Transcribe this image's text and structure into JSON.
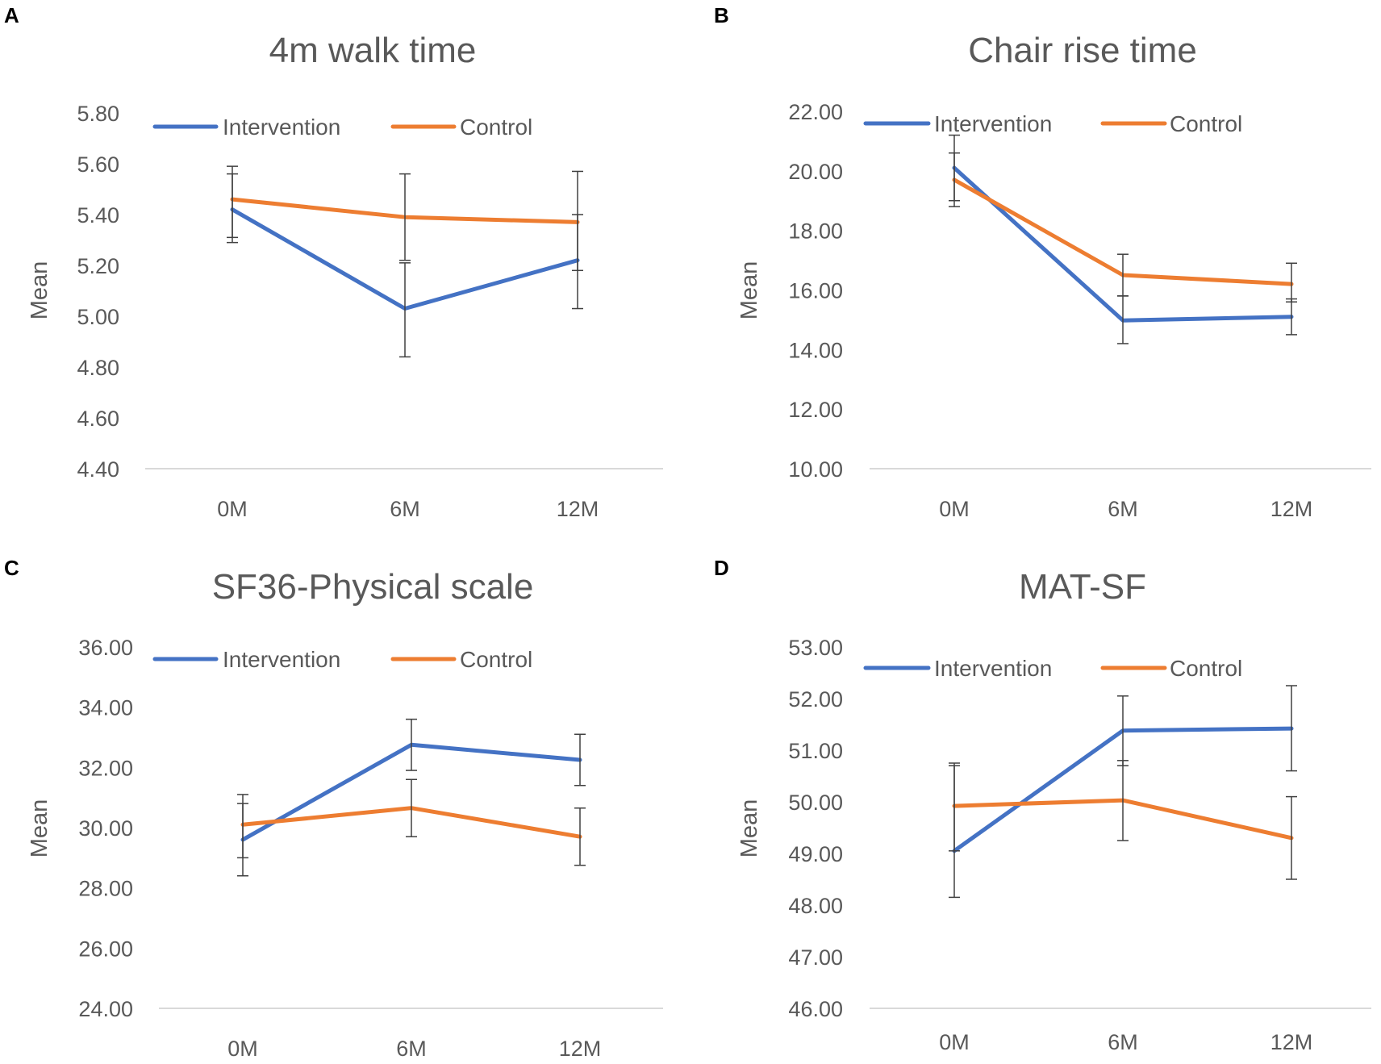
{
  "figure": {
    "panels": [
      "A",
      "B",
      "C",
      "D"
    ]
  },
  "colors": {
    "intervention": "#4472C4",
    "control": "#ED7D31",
    "axis": "#D9D9D9",
    "text": "#595959",
    "errorbar": "#404040"
  },
  "chart_data": [
    {
      "panel": "A",
      "type": "line",
      "title": "4m walk time",
      "xlabel": "",
      "ylabel": "Mean",
      "categories": [
        "0M",
        "6M",
        "12M"
      ],
      "ylim": [
        4.4,
        5.8
      ],
      "yticks": [
        "4.40",
        "4.60",
        "4.80",
        "5.00",
        "5.20",
        "5.40",
        "5.60",
        "5.80"
      ],
      "legend": "top",
      "series": [
        {
          "name": "Intervention",
          "color": "#4472C4",
          "values": [
            5.42,
            5.03,
            5.22
          ],
          "err_low": [
            5.31,
            4.84,
            5.03
          ],
          "err_high": [
            5.56,
            5.21,
            5.4
          ]
        },
        {
          "name": "Control",
          "color": "#ED7D31",
          "values": [
            5.46,
            5.39,
            5.37
          ],
          "err_low": [
            5.29,
            5.22,
            5.18
          ],
          "err_high": [
            5.59,
            5.56,
            5.57
          ]
        }
      ]
    },
    {
      "panel": "B",
      "type": "line",
      "title": "Chair rise time",
      "xlabel": "",
      "ylabel": "Mean",
      "categories": [
        "0M",
        "6M",
        "12M"
      ],
      "ylim": [
        10.0,
        22.0
      ],
      "yticks": [
        "10.00",
        "12.00",
        "14.00",
        "16.00",
        "18.00",
        "20.00",
        "22.00"
      ],
      "legend": "top",
      "series": [
        {
          "name": "Intervention",
          "color": "#4472C4",
          "values": [
            20.1,
            14.98,
            15.1
          ],
          "err_low": [
            19.0,
            14.2,
            14.5
          ],
          "err_high": [
            21.2,
            15.8,
            15.7
          ]
        },
        {
          "name": "Control",
          "color": "#ED7D31",
          "values": [
            19.7,
            16.5,
            16.2
          ],
          "err_low": [
            18.8,
            15.8,
            15.6
          ],
          "err_high": [
            20.6,
            17.2,
            16.9
          ]
        }
      ]
    },
    {
      "panel": "C",
      "type": "line",
      "title": "SF36-Physical scale",
      "xlabel": "",
      "ylabel": "Mean",
      "categories": [
        "0M",
        "6M",
        "12M"
      ],
      "ylim": [
        24.0,
        36.0
      ],
      "yticks": [
        "24.00",
        "26.00",
        "28.00",
        "30.00",
        "32.00",
        "34.00",
        "36.00"
      ],
      "legend": "top",
      "series": [
        {
          "name": "Intervention",
          "color": "#4472C4",
          "values": [
            29.6,
            32.75,
            32.25
          ],
          "err_low": [
            28.4,
            31.9,
            31.4
          ],
          "err_high": [
            30.8,
            33.6,
            33.1
          ]
        },
        {
          "name": "Control",
          "color": "#ED7D31",
          "values": [
            30.1,
            30.65,
            29.7
          ],
          "err_low": [
            29.0,
            29.7,
            28.75
          ],
          "err_high": [
            31.1,
            31.6,
            30.65
          ]
        }
      ]
    },
    {
      "panel": "D",
      "type": "line",
      "title": "MAT-SF",
      "xlabel": "",
      "ylabel": "Mean",
      "categories": [
        "0M",
        "6M",
        "12M"
      ],
      "ylim": [
        46.0,
        53.0
      ],
      "yticks": [
        "46.00",
        "47.00",
        "48.00",
        "49.00",
        "50.00",
        "51.00",
        "52.00",
        "53.00"
      ],
      "legend": "top",
      "series": [
        {
          "name": "Intervention",
          "color": "#4472C4",
          "values": [
            49.05,
            51.38,
            51.42
          ],
          "err_low": [
            48.15,
            50.7,
            50.6
          ],
          "err_high": [
            50.7,
            52.05,
            52.25
          ]
        },
        {
          "name": "Control",
          "color": "#ED7D31",
          "values": [
            49.92,
            50.03,
            49.3
          ],
          "err_low": [
            49.05,
            49.25,
            48.5
          ],
          "err_high": [
            50.75,
            50.8,
            50.1
          ]
        }
      ]
    }
  ]
}
